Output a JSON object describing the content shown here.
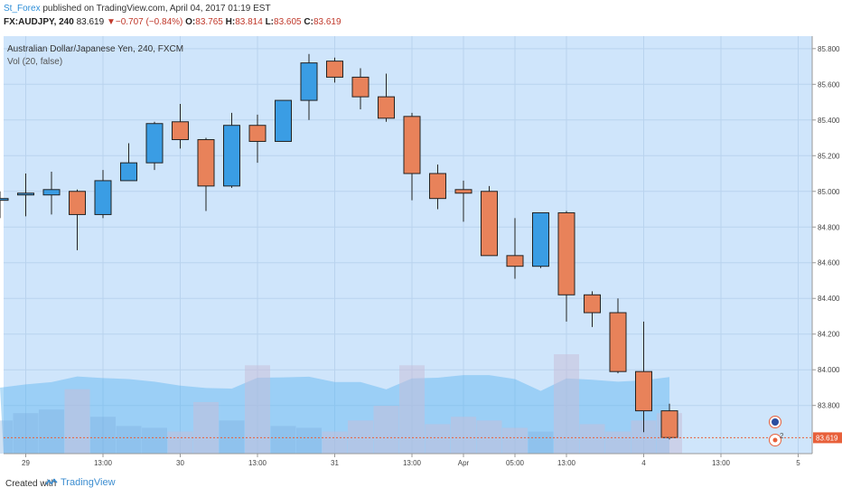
{
  "header": {
    "publisher": "St_Forex",
    "published_text": "published on TradingView.com, April 04, 2017 01:19 EST",
    "symbol": "FX:AUDJPY, 240",
    "last": "83.619",
    "change": "▼−0.707 (−0.84%)",
    "open_label": "O:",
    "open": "83.765",
    "high_label": "H:",
    "high": "83.814",
    "low_label": "L:",
    "low": "83.605",
    "close_label": "C:",
    "close": "83.619"
  },
  "legend": {
    "title": "Australian Dollar/Japanese Yen, 240, FXCM",
    "indicator": "Vol (20, false)"
  },
  "footer": {
    "created_with": "Created with",
    "brand": "TradingView"
  },
  "colors": {
    "up": "#3a9de4",
    "down": "#e8825a",
    "background": "#cfe5fb",
    "price_line": "#e8603a"
  },
  "chart_data": {
    "type": "candlestick",
    "y_ticks": [
      "85.800",
      "85.600",
      "85.400",
      "85.200",
      "85.000",
      "84.800",
      "84.600",
      "84.400",
      "84.200",
      "84.000",
      "83.800"
    ],
    "ylim": [
      83.53,
      85.87
    ],
    "x_ticks": [
      {
        "label": "29",
        "i": 1
      },
      {
        "label": "13:00",
        "i": 4
      },
      {
        "label": "30",
        "i": 7
      },
      {
        "label": "13:00",
        "i": 10
      },
      {
        "label": "31",
        "i": 13
      },
      {
        "label": "13:00",
        "i": 16
      },
      {
        "label": "Apr",
        "i": 18
      },
      {
        "label": "05:00",
        "i": 20
      },
      {
        "label": "13:00",
        "i": 22
      },
      {
        "label": "4",
        "i": 25
      },
      {
        "label": "13:00",
        "i": 28
      },
      {
        "label": "5",
        "i": 31
      }
    ],
    "last_price": 83.619,
    "last_price_label": "83.619",
    "candles": [
      {
        "o": 84.96,
        "h": 85.0,
        "l": 84.85,
        "c": 84.96
      },
      {
        "o": 84.99,
        "h": 85.1,
        "l": 84.86,
        "c": 84.99
      },
      {
        "o": 84.98,
        "h": 85.11,
        "l": 84.87,
        "c": 85.01
      },
      {
        "o": 85.0,
        "h": 85.01,
        "l": 84.67,
        "c": 84.87
      },
      {
        "o": 84.87,
        "h": 85.12,
        "l": 84.85,
        "c": 85.06
      },
      {
        "o": 85.06,
        "h": 85.27,
        "l": 85.06,
        "c": 85.16
      },
      {
        "o": 85.16,
        "h": 85.39,
        "l": 85.12,
        "c": 85.38
      },
      {
        "o": 85.39,
        "h": 85.49,
        "l": 85.24,
        "c": 85.29
      },
      {
        "o": 85.29,
        "h": 85.3,
        "l": 84.89,
        "c": 85.03
      },
      {
        "o": 85.03,
        "h": 85.44,
        "l": 85.02,
        "c": 85.37
      },
      {
        "o": 85.37,
        "h": 85.43,
        "l": 85.16,
        "c": 85.28
      },
      {
        "o": 85.28,
        "h": 85.51,
        "l": 85.28,
        "c": 85.51
      },
      {
        "o": 85.51,
        "h": 85.77,
        "l": 85.4,
        "c": 85.72
      },
      {
        "o": 85.73,
        "h": 85.75,
        "l": 85.61,
        "c": 85.64
      },
      {
        "o": 85.64,
        "h": 85.69,
        "l": 85.46,
        "c": 85.53
      },
      {
        "o": 85.53,
        "h": 85.66,
        "l": 85.39,
        "c": 85.41
      },
      {
        "o": 85.42,
        "h": 85.44,
        "l": 84.95,
        "c": 85.1
      },
      {
        "o": 85.1,
        "h": 85.15,
        "l": 84.9,
        "c": 84.96
      },
      {
        "o": 85.01,
        "h": 85.06,
        "l": 84.83,
        "c": 84.99
      },
      {
        "o": 85.0,
        "h": 85.03,
        "l": 84.64,
        "c": 84.64
      },
      {
        "o": 84.64,
        "h": 84.85,
        "l": 84.51,
        "c": 84.58
      },
      {
        "o": 84.58,
        "h": 84.88,
        "l": 84.57,
        "c": 84.88
      },
      {
        "o": 84.88,
        "h": 84.89,
        "l": 84.27,
        "c": 84.42
      },
      {
        "o": 84.42,
        "h": 84.44,
        "l": 84.24,
        "c": 84.32
      },
      {
        "o": 84.32,
        "h": 84.4,
        "l": 83.98,
        "c": 83.99
      },
      {
        "o": 83.99,
        "h": 84.27,
        "l": 83.65,
        "c": 83.77
      },
      {
        "o": 83.77,
        "h": 83.81,
        "l": 83.61,
        "c": 83.62
      }
    ],
    "volume": [
      18,
      22,
      24,
      35,
      20,
      15,
      14,
      12,
      28,
      18,
      48,
      15,
      14,
      12,
      18,
      26,
      48,
      16,
      20,
      18,
      14,
      12,
      54,
      16,
      12,
      18,
      22
    ]
  }
}
